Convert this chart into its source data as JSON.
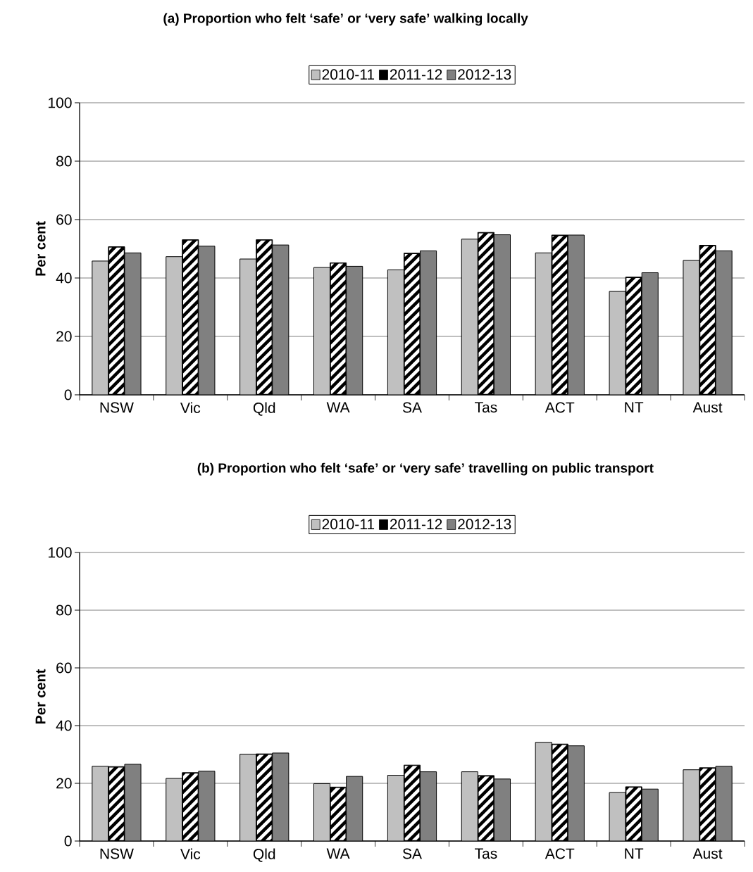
{
  "chart_data": [
    {
      "type": "bar",
      "title": "(a) Proportion who felt ‘safe’ or ‘very safe’ walking locally",
      "ylabel": "Per cent",
      "categories": [
        "NSW",
        "Vic",
        "Qld",
        "WA",
        "SA",
        "Tas",
        "ACT",
        "NT",
        "Aust"
      ],
      "series": [
        {
          "name": "2010-11",
          "color": "#c0c0c0",
          "values": [
            45.8,
            47.3,
            46.5,
            43.6,
            42.8,
            53.3,
            48.6,
            35.4,
            46.0
          ]
        },
        {
          "name": "2011-12",
          "color": "#000000",
          "values": [
            50.7,
            53.1,
            53.1,
            45.2,
            48.5,
            55.6,
            54.7,
            40.3,
            51.2
          ]
        },
        {
          "name": "2012-13",
          "color": "#808080",
          "values": [
            48.6,
            50.9,
            51.3,
            44.0,
            49.3,
            54.8,
            54.7,
            41.8,
            49.3
          ]
        }
      ],
      "ylim": [
        0,
        100
      ],
      "yticks": [
        0,
        20,
        40,
        60,
        80,
        100
      ],
      "grid": "y",
      "legend": "top"
    },
    {
      "type": "bar",
      "title": "(b) Proportion who felt ‘safe’ or ‘very safe’ travelling on public transport",
      "ylabel": "Per cent",
      "categories": [
        "NSW",
        "Vic",
        "Qld",
        "WA",
        "SA",
        "Tas",
        "ACT",
        "NT",
        "Aust"
      ],
      "series": [
        {
          "name": "2010-11",
          "color": "#c0c0c0",
          "values": [
            25.9,
            21.7,
            30.1,
            19.9,
            22.8,
            24.0,
            34.2,
            16.8,
            24.7
          ]
        },
        {
          "name": "2011-12",
          "color": "#000000",
          "values": [
            25.8,
            23.7,
            30.2,
            18.7,
            26.3,
            22.7,
            33.6,
            18.8,
            25.4
          ]
        },
        {
          "name": "2012-13",
          "color": "#808080",
          "values": [
            26.6,
            24.2,
            30.5,
            22.4,
            24.0,
            21.5,
            33.0,
            18.0,
            25.9
          ]
        }
      ],
      "ylim": [
        0,
        100
      ],
      "yticks": [
        0,
        20,
        40,
        60,
        80,
        100
      ],
      "grid": "y",
      "legend": "top"
    }
  ]
}
